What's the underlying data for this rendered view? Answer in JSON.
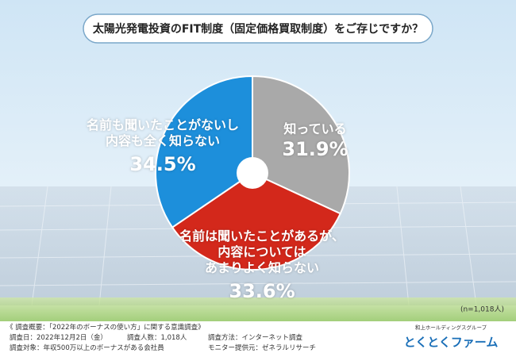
{
  "chart_data": {
    "type": "pie",
    "title": "太陽光発電投資のFIT制度（固定価格買取制度）をご存じですか？",
    "categories": [
      "知っている",
      "名前は聞いたことがあるが、\n内容については\nあまりよく知らない",
      "名前も聞いたことがないし\n内容も全く知らない"
    ],
    "values": [
      31.9,
      33.6,
      34.5
    ],
    "value_labels": [
      "31.9%",
      "33.6%",
      "34.5%"
    ],
    "colors": [
      "#a9a9a9",
      "#d3281b",
      "#1d8fdb"
    ],
    "note": "(n=1,018人)"
  },
  "footer": {
    "heading": "《 調査概要：「2022年のボーナスの使い方」に関する意識調査》",
    "items": [
      "調査日：2022年12月2日（金）",
      "調査人数：1,018人",
      "調査方法：インターネット調査",
      "調査対象：年収500万以上のボーナスがある会社員",
      "モニター提供元：ゼネラルリサーチ"
    ]
  },
  "logo": {
    "group": "和上ホールディングスグループ",
    "name": "とくとくファーム"
  }
}
